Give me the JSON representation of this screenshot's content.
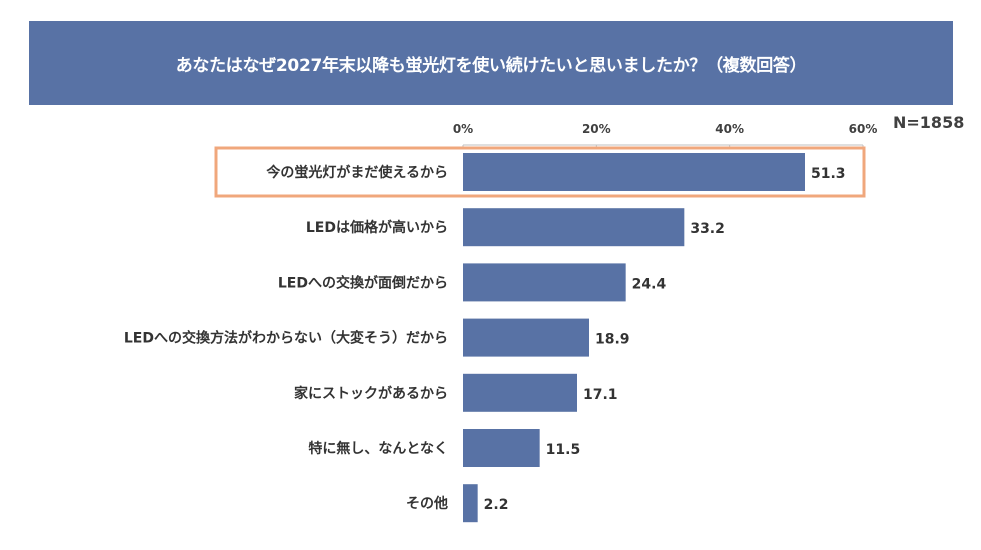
{
  "chart_data": {
    "type": "bar",
    "orientation": "horizontal",
    "title": "あなたはなぜ2027年末以降も蛍光灯を使い続けたいと思いましたか？（複数回答）",
    "sample_size_label": "N=1858",
    "xlabel": "",
    "ylabel": "",
    "xlim": [
      0,
      60
    ],
    "x_ticks": [
      "0%",
      "20%",
      "40%",
      "60%"
    ],
    "x_tick_values": [
      0,
      20,
      40,
      60
    ],
    "categories": [
      "今の蛍光灯がまだ使えるから",
      "LEDは価格が高いから",
      "LEDへの交換が面倒だから",
      "LEDへの交換方法がわからない（大変そう）だから",
      "家にストックがあるから",
      "特に無し、なんとなく",
      "その他"
    ],
    "values": [
      51.3,
      33.2,
      24.4,
      18.9,
      17.1,
      11.5,
      2.2
    ],
    "value_labels": [
      "51.3",
      "33.2",
      "24.4",
      "18.9",
      "17.1",
      "11.5",
      "2.2"
    ],
    "highlighted_category": "今の蛍光灯がまだ使えるから",
    "colors": {
      "bar": "#5872a5",
      "highlight": "#f0a77c",
      "banner": "#5872a5"
    },
    "grid": false,
    "legend": "none"
  }
}
